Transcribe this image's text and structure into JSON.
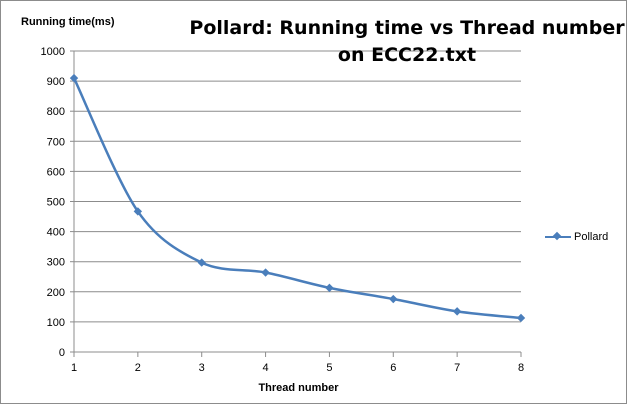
{
  "chart_data": {
    "type": "line",
    "title": "Pollard: Running time vs Thread number on ECC22.txt",
    "xlabel": "Thread number",
    "ylabel": "Running time(ms)",
    "x": [
      1,
      2,
      3,
      4,
      5,
      6,
      7,
      8
    ],
    "series": [
      {
        "name": "Pollard",
        "values": [
          910,
          467,
          297,
          264,
          213,
          176,
          135,
          113
        ]
      }
    ],
    "ylim": [
      0,
      1000
    ],
    "yticks": [
      "0",
      "100",
      "200",
      "300",
      "400",
      "500",
      "600",
      "700",
      "800",
      "900",
      "1000"
    ],
    "xticks": [
      "1",
      "2",
      "3",
      "4",
      "5",
      "6",
      "7",
      "8"
    ],
    "grid": true,
    "smooth": true,
    "legend_position": "right",
    "colors": {
      "series": "#4a7ebb",
      "grid": "#8c8c8c",
      "axis": "#8c8c8c"
    }
  }
}
